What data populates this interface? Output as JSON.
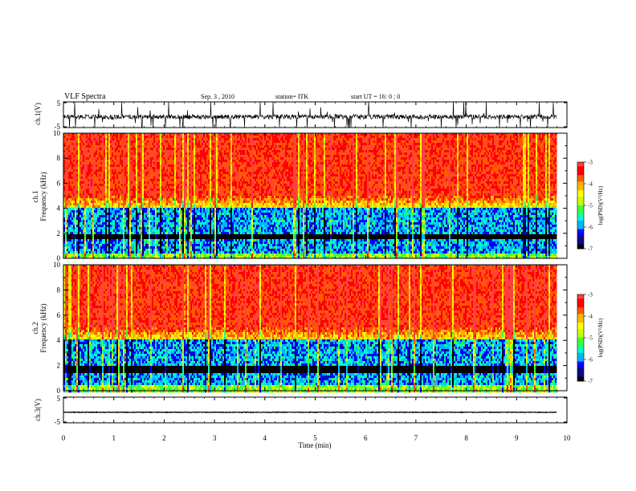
{
  "header": {
    "title": "VLF Spectra",
    "date": "Sep. 3 , 2010",
    "station": "station= ITK",
    "start_ut": "start UT =   16: 0  : 0"
  },
  "colors": {
    "spectrogram_ramp": [
      "#000000",
      "#0a0a8c",
      "#0000ff",
      "#00b4ff",
      "#00ffc8",
      "#3cff3c",
      "#c8ff00",
      "#ffff00",
      "#ffb400",
      "#ff5a00",
      "#ff0000",
      "#ff4040"
    ]
  },
  "chart_data": [
    {
      "type": "line",
      "panel": "ch1_waveform",
      "ylabel": "ch.1(V)",
      "ylim": [
        -5,
        5
      ],
      "yticks": [
        "5",
        "-5"
      ],
      "xlim": [
        0,
        10
      ],
      "baseline_v": -0.8,
      "x_end_min": 9.8,
      "description_values": {
        "typical_range_v": [
          -3,
          1
        ],
        "spike_peak_v": 5
      }
    },
    {
      "type": "heatmap",
      "panel": "ch1_spectrogram",
      "ylabel": "ch.1\nFrequency (kHz)",
      "ylim": [
        0,
        10
      ],
      "yticks": [
        "0",
        "2",
        "4",
        "6",
        "8",
        "10"
      ],
      "xlim": [
        0,
        10
      ],
      "x_end_min": 9.8,
      "colorbar": {
        "label": "log(PSD)(V²/Hz)",
        "range": [
          -7,
          -3
        ],
        "ticks": [
          "-3",
          "-4",
          "-5",
          "-6",
          "-7"
        ]
      },
      "bands_khz": {
        "low_noise_top": 4.0,
        "hum_line": 1.7,
        "high_power_above": 5.0
      }
    },
    {
      "type": "heatmap",
      "panel": "ch2_spectrogram",
      "ylabel": "ch.2\nFrequency (kHz)",
      "ylim": [
        0,
        10
      ],
      "yticks": [
        "0",
        "2",
        "4",
        "6",
        "8",
        "10"
      ],
      "xlim": [
        0,
        10
      ],
      "x_end_min": 9.8,
      "colorbar": {
        "label": "log(PSD)(V²/Hz)",
        "range": [
          -7,
          -3
        ],
        "ticks": [
          "-3",
          "-4",
          "-5",
          "-6",
          "-7"
        ]
      },
      "bands_khz": {
        "low_noise_top": 4.0,
        "hum_line": 1.7,
        "high_power_above": 5.0
      }
    },
    {
      "type": "line",
      "panel": "ch3_waveform",
      "ylabel": "ch.3(V)",
      "ylim": [
        -5,
        5
      ],
      "yticks": [
        "5",
        "-5"
      ],
      "xlim": [
        0,
        10
      ],
      "baseline_v": -0.9,
      "x_end_min": 9.8,
      "xlabel": "Time (min)",
      "xticks": [
        "0",
        "1",
        "2",
        "3",
        "4",
        "5",
        "6",
        "7",
        "8",
        "9",
        "10"
      ]
    }
  ]
}
